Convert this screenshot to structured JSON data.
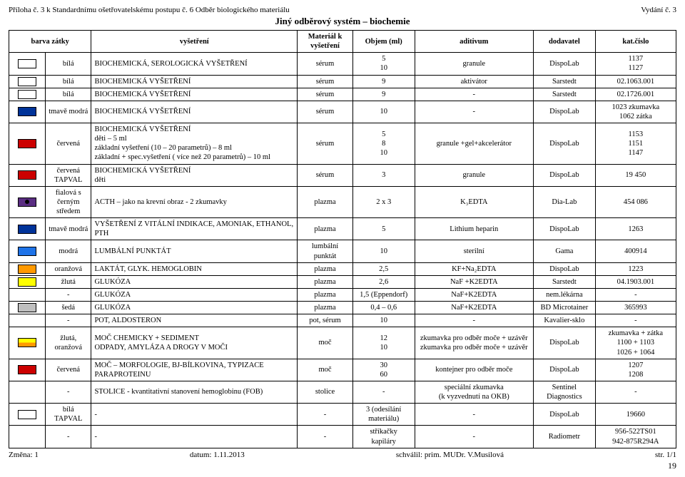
{
  "meta": {
    "header_left": "Příloha č. 3 k Standardnímu ošetřovatelskému postupu č. 6 Odběr biologického materiálu",
    "header_right": "Vydání č. 3",
    "title": "Jiný odběrový systém – biochemie",
    "footer_left": "Změna: 1",
    "footer_center": "datum: 1.11.2013",
    "footer_right": "schválil: prim. MUDr. V.Musilová",
    "footer_page": "str. 1/1",
    "page_number": "19"
  },
  "columns": {
    "c1": "barva zátky",
    "c2": "vyšetření",
    "c3": "Materiál k vyšetření",
    "c4": "Objem (ml)",
    "c5": "aditivum",
    "c6": "dodavatel",
    "c7": "kat.číslo"
  },
  "rows": [
    {
      "swatch": "sw-white",
      "color": "bílá",
      "test": "BIOCHEMICKÁ, SEROLOGICKÁ VYŠETŘENÍ",
      "material": "sérum",
      "volume": "5\n10",
      "additive": "granule",
      "supplier": "DispoLab",
      "cat": "1137\n1127"
    },
    {
      "swatch": "sw-white",
      "color": "bílá",
      "test": "BIOCHEMICKÁ VYŠETŘENÍ",
      "material": "sérum",
      "volume": "9",
      "additive": "aktivátor",
      "supplier": "Sarstedt",
      "cat": "02.1063.001"
    },
    {
      "swatch": "sw-white",
      "color": "bílá",
      "test": "BIOCHEMICKÁ VYŠETŘENÍ",
      "material": "sérum",
      "volume": "9",
      "additive": "-",
      "supplier": "Sarstedt",
      "cat": "02.1726.001"
    },
    {
      "swatch": "sw-darkblue",
      "color": "tmavě modrá",
      "test": "BIOCHEMICKÁ VYŠETŘENÍ",
      "material": "sérum",
      "volume": "10",
      "additive": "-",
      "supplier": "DispoLab",
      "cat": "1023 zkumavka\n1062 zátka"
    },
    {
      "swatch": "sw-red",
      "color": "červená",
      "test": "BIOCHEMICKÁ VYŠETŘENÍ\nděti – 5 ml\nzákladní vyšetření (10 – 20 parametrů) – 8 ml\nzákladní + spec.vyšetření ( více než 20 parametrů) – 10 ml",
      "material": "sérum",
      "volume": "5\n8\n10",
      "additive": "granule +gel+akcelerátor",
      "supplier": "DispoLab",
      "cat": "1153\n1151\n1147"
    },
    {
      "swatch": "sw-red",
      "color": "červená TAPVAL",
      "test": "BIOCHEMICKÁ VYŠETŘENÍ\nděti",
      "material": "sérum",
      "volume": "3",
      "additive": "granule",
      "supplier": "DispoLab",
      "cat": "19 450"
    },
    {
      "swatch": "sw-purple",
      "color": "fialová s černým středem",
      "test": "ACTH – jako na krevní obraz - 2 zkumavky",
      "material": "plazma",
      "volume": "2 x 3",
      "additive": "K₃EDTA",
      "supplier": "Dia-Lab",
      "cat": "454 086"
    },
    {
      "swatch": "sw-darkblue",
      "color": "tmavě modrá",
      "test": "VYŠETŘENÍ Z VITÁLNÍ INDIKACE, AMONIAK, ETHANOL, PTH",
      "material": "plazma",
      "volume": "5",
      "additive": "Lithium heparin",
      "supplier": "DispoLab",
      "cat": "1263"
    },
    {
      "swatch": "sw-blue",
      "color": "modrá",
      "test": "LUMBÁLNÍ PUNKTÁT",
      "material": "lumbální punktát",
      "volume": "10",
      "additive": "sterilní",
      "supplier": "Gama",
      "cat": "400914"
    },
    {
      "swatch": "sw-orange",
      "color": "oranžová",
      "test": "LAKTÁT, GLYK. HEMOGLOBIN",
      "material": "plazma",
      "volume": "2,5",
      "additive": "KF+Na₂EDTA",
      "supplier": "DispoLab",
      "cat": "1223"
    },
    {
      "swatch": "sw-yellow",
      "color": "žlutá",
      "test": "GLUKÓZA",
      "material": "plazma",
      "volume": "2,6",
      "additive": "NaF +K2EDTA",
      "supplier": "Sarstedt",
      "cat": "04.1903.001"
    },
    {
      "swatch": "",
      "color": "-",
      "test": "GLUKÓZA",
      "material": "plazma",
      "volume": "1,5 (Eppendorf)",
      "additive": "NaF+K2EDTA",
      "supplier": "nem.lékárna",
      "cat": "-"
    },
    {
      "swatch": "sw-grey",
      "color": "šedá",
      "test": "GLUKÓZA",
      "material": "plazma",
      "volume": "0,4 – 0,6",
      "additive": "NaF+K2EDTA",
      "supplier": "BD Microtainer",
      "cat": "365993"
    },
    {
      "swatch": "",
      "color": "-",
      "test": "POT, ALDOSTERON",
      "material": "pot, sérum",
      "volume": "10",
      "additive": "-",
      "supplier": "Kavalier-sklo",
      "cat": "-"
    },
    {
      "swatch": "sw-yelorange",
      "color": "žlutá, oranžová",
      "test": "MOČ CHEMICKY + SEDIMENT\nODPADY, AMYLÁZA A DROGY V MOČI",
      "material": "moč",
      "volume": "12\n10",
      "additive": "zkumavka pro odběr moče + uzávěr\nzkumavka pro odběr moče + uzávěr",
      "supplier": "DispoLab",
      "cat": "zkumavka + zátka\n1100 + 1103\n1026 + 1064"
    },
    {
      "swatch": "sw-red",
      "color": "červená",
      "test": "MOČ – MORFOLOGIE, BJ-BÍLKOVINA, TYPIZACE PARAPROTEINU",
      "material": "moč",
      "volume": "30\n60",
      "additive": "kontejner pro odběr moče",
      "supplier": "DispoLab",
      "cat": "1207\n1208"
    },
    {
      "swatch": "",
      "color": "-",
      "test": "STOLICE - kvantitativní stanovení hemoglobinu (FOB)",
      "material": "stolice",
      "volume": "-",
      "additive": "speciální zkumavka\n(k vyzvednutí na OKB)",
      "supplier": "Sentinel Diagnostics",
      "cat": "-"
    },
    {
      "swatch": "sw-white",
      "color": "bílá TAPVAL",
      "test": "-",
      "material": "-",
      "volume": "3 (odesílání materiálu)",
      "additive": "-",
      "supplier": "DispoLab",
      "cat": "19660"
    },
    {
      "swatch": "",
      "color": "-",
      "test": "-",
      "material": "-",
      "volume": "stříkačky\nkapiláry",
      "additive": "-",
      "supplier": "Radiometr",
      "cat": "956-522TS01\n942-875R294A"
    }
  ]
}
